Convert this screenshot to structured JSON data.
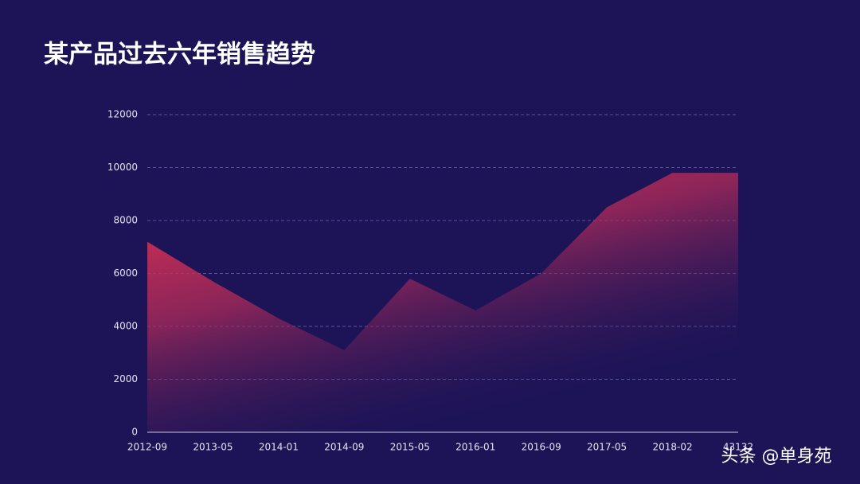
{
  "chart_data": {
    "type": "area",
    "title": "某产品过去六年销售趋势",
    "categories": [
      "2012-09",
      "2013-05",
      "2014-01",
      "2014-09",
      "2015-05",
      "2016-01",
      "2016-09",
      "2017-05",
      "2018-02",
      "43132"
    ],
    "values": [
      7200,
      5700,
      4300,
      3100,
      5800,
      4600,
      6000,
      8500,
      9800,
      9800
    ],
    "color": "#f0344f",
    "ylim": [
      0,
      12000
    ],
    "yticks": [
      0,
      2000,
      4000,
      6000,
      8000,
      10000,
      12000
    ],
    "grid": true
  },
  "watermark": "头条 @单身苑"
}
